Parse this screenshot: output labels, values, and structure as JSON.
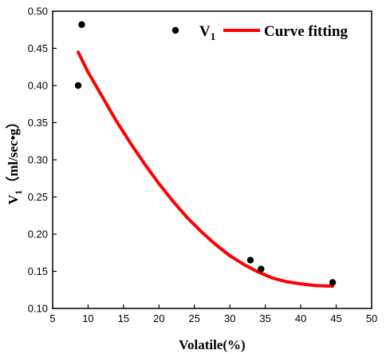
{
  "chart_data": {
    "type": "scatter",
    "xlabel": "Volatile(%)",
    "ylabel": "V",
    "ylabel_sub": "1",
    "ylabel_unit": "（ml/sec•g）",
    "xlim": [
      5,
      50
    ],
    "ylim": [
      0.1,
      0.5
    ],
    "xticks": [
      "5",
      "10",
      "15",
      "20",
      "25",
      "30",
      "35",
      "40",
      "45",
      "50"
    ],
    "yticks": [
      "0.10",
      "0.15",
      "0.20",
      "0.25",
      "0.30",
      "0.35",
      "0.40",
      "0.45",
      "0.50"
    ],
    "grid": false,
    "legend_position": "top-right",
    "series": [
      {
        "name": "V",
        "name_sub": "1",
        "kind": "points",
        "color": "#000000",
        "x": [
          8.6,
          9.1,
          32.9,
          34.4,
          44.5
        ],
        "y": [
          0.4,
          0.482,
          0.165,
          0.153,
          0.135
        ]
      },
      {
        "name": "Curve fitting",
        "kind": "line",
        "color": "#ff0000",
        "x": [
          8.6,
          10,
          12,
          14,
          16,
          18,
          20,
          22,
          24,
          26,
          28,
          30,
          32,
          34,
          36,
          38,
          40,
          42,
          44.5
        ],
        "y": [
          0.445,
          0.418,
          0.385,
          0.352,
          0.322,
          0.294,
          0.268,
          0.244,
          0.222,
          0.203,
          0.186,
          0.171,
          0.159,
          0.149,
          0.141,
          0.136,
          0.133,
          0.131,
          0.13
        ]
      }
    ]
  }
}
